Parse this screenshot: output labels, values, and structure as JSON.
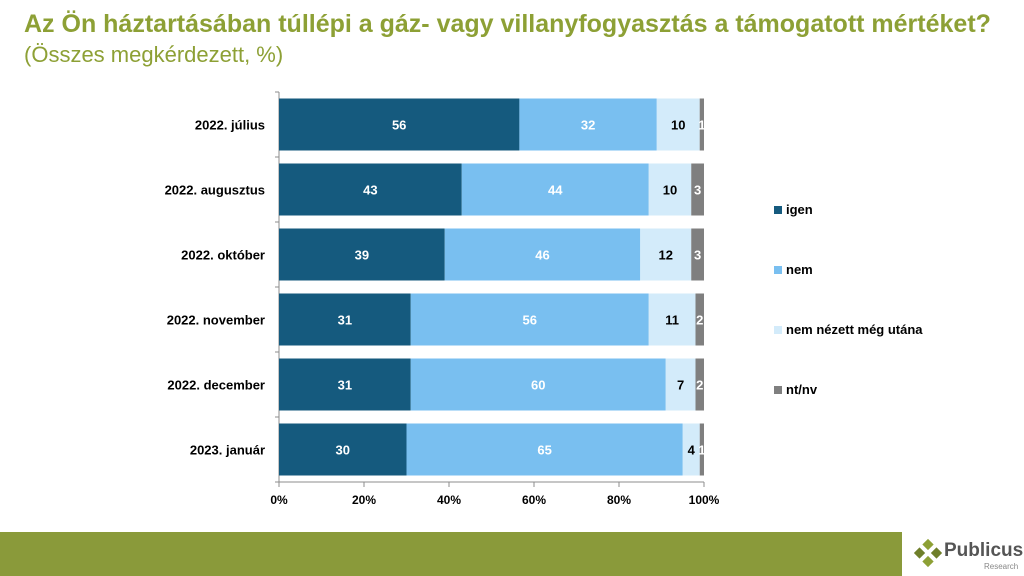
{
  "page": {
    "title": "Az Ön háztartásában túllépi a gáz- vagy villanyfogyasztás a támogatott mértéket?",
    "subtitle": "(Összes megkérdezett, %)"
  },
  "logo": {
    "name": "Publicus",
    "sub": "Research"
  },
  "colors": {
    "accent": "#8da035",
    "footer": "#8a9a3a",
    "igen": "#155a7e",
    "nem": "#79bff0",
    "nem_nezett": "#d3ebfa",
    "ntnv": "#7f7f7f"
  },
  "chart_data": {
    "type": "bar",
    "orientation": "horizontal",
    "stacked": "percent",
    "categories": [
      "2022. július",
      "2022. augusztus",
      "2022. október",
      "2022. november",
      "2022. december",
      "2023. január"
    ],
    "series": [
      {
        "name": "igen",
        "values": [
          56,
          43,
          39,
          31,
          31,
          30
        ]
      },
      {
        "name": "nem",
        "values": [
          32,
          44,
          46,
          56,
          60,
          65
        ]
      },
      {
        "name": "nem nézett még utána",
        "values": [
          10,
          10,
          12,
          11,
          7,
          4
        ]
      },
      {
        "name": "nt/nv",
        "values": [
          1,
          3,
          3,
          2,
          2,
          1
        ]
      }
    ],
    "xticks": [
      "0%",
      "20%",
      "40%",
      "60%",
      "80%",
      "100%"
    ],
    "xlim": [
      0,
      100
    ],
    "legend": "right",
    "grid": false
  }
}
